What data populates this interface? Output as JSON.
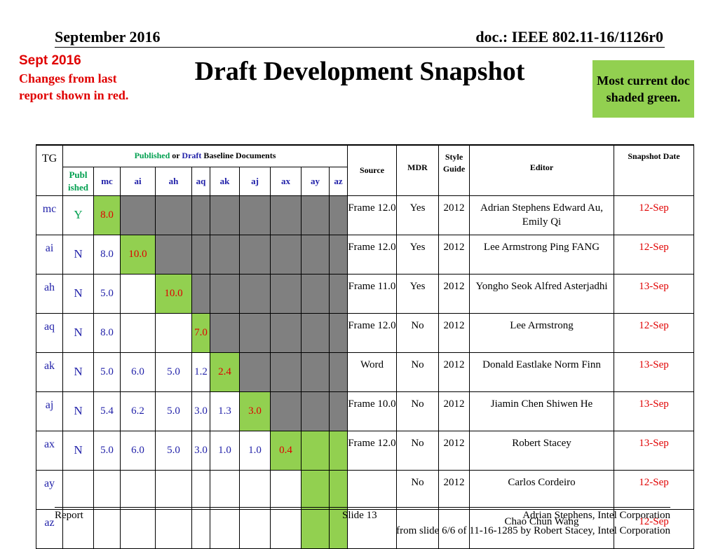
{
  "header": {
    "date": "September 2016",
    "doc_id": "doc.: IEEE 802.11-16/1126r0"
  },
  "note": {
    "label": "Sept 2016",
    "changes": "Changes from  last report shown in red."
  },
  "title": "Draft Development Snapshot",
  "legend_box": "Most current doc shaded green.",
  "colors": {
    "red": "#e00000",
    "blue": "#1f1fa8",
    "green_text": "#00a050",
    "green_fill": "#92d050",
    "gray_fill": "#808080"
  },
  "table": {
    "header": {
      "tg": "TG",
      "baseline_published": "Published",
      "baseline_or": " or ",
      "baseline_draft": "Draft",
      "baseline_rest": " Baseline Documents",
      "published": "Publ ished",
      "doc_cols": [
        "mc",
        "ai",
        "ah",
        "aq",
        "ak",
        "aj",
        "ax",
        "ay",
        "az"
      ],
      "source": "Source",
      "mdr": "MDR",
      "style_guide": "Style Guide",
      "editor": "Editor",
      "snapshot_date": "Snapshot Date"
    },
    "rows": [
      {
        "tg": "mc",
        "published": "Y",
        "cells": [
          "8.0",
          "",
          "",
          "",
          "",
          "",
          "",
          "",
          ""
        ],
        "source": "Frame 12.0",
        "mdr": "Yes",
        "style": "2012",
        "editor": "Adrian Stephens Edward Au, Emily Qi",
        "date": "12-Sep"
      },
      {
        "tg": "ai",
        "published": "N",
        "cells": [
          "8.0",
          "10.0",
          "",
          "",
          "",
          "",
          "",
          "",
          ""
        ],
        "source": "Frame 12.0",
        "mdr": "Yes",
        "style": "2012",
        "editor": "Lee Armstrong Ping FANG",
        "date": "12-Sep"
      },
      {
        "tg": "ah",
        "published": "N",
        "cells": [
          "5.0",
          "",
          "10.0",
          "",
          "",
          "",
          "",
          "",
          ""
        ],
        "source": "Frame 11.0",
        "mdr": "Yes",
        "style": "2012",
        "editor": "Yongho Seok Alfred Asterjadhi",
        "date": "13-Sep"
      },
      {
        "tg": "aq",
        "published": "N",
        "cells": [
          "8.0",
          "",
          "",
          "7.0",
          "",
          "",
          "",
          "",
          ""
        ],
        "source": "Frame 12.0",
        "mdr": "No",
        "style": "2012",
        "editor": "Lee Armstrong",
        "date": "12-Sep"
      },
      {
        "tg": "ak",
        "published": "N",
        "cells": [
          "5.0",
          "6.0",
          "5.0",
          "1.2",
          "2.4",
          "",
          "",
          "",
          ""
        ],
        "source": "Word",
        "mdr": "No",
        "style": "2012",
        "editor": "Donald Eastlake Norm Finn",
        "date": "13-Sep"
      },
      {
        "tg": "aj",
        "published": "N",
        "cells": [
          "5.4",
          "6.2",
          "5.0",
          "3.0",
          "1.3",
          "3.0",
          "",
          "",
          ""
        ],
        "source": "Frame 10.0",
        "mdr": "No",
        "style": "2012",
        "editor": "Jiamin Chen Shiwen He",
        "date": "13-Sep"
      },
      {
        "tg": "ax",
        "published": "N",
        "cells": [
          "5.0",
          "6.0",
          "5.0",
          "3.0",
          "1.0",
          "1.0",
          "0.4",
          "",
          ""
        ],
        "source": "Frame 12.0",
        "mdr": "No",
        "style": "2012",
        "editor": "Robert Stacey",
        "date": "13-Sep"
      },
      {
        "tg": "ay",
        "published": "",
        "cells": [
          "",
          "",
          "",
          "",
          "",
          "",
          "",
          "",
          ""
        ],
        "source": "",
        "mdr": "No",
        "style": "2012",
        "editor": "Carlos Cordeiro",
        "date": "12-Sep"
      },
      {
        "tg": "az",
        "published": "",
        "cells": [
          "",
          "",
          "",
          "",
          "",
          "",
          "",
          "",
          ""
        ],
        "source": "",
        "mdr": "",
        "style": "",
        "editor": "Chao Chun Wang",
        "date": "12-Sep"
      }
    ]
  },
  "footer": {
    "left": "Report",
    "slide": "Slide 13",
    "author": "Adrian Stephens, Intel Corporation",
    "from": "from slide 6/6 of 11-16-1285 by Robert Stacey, Intel Corporation"
  }
}
